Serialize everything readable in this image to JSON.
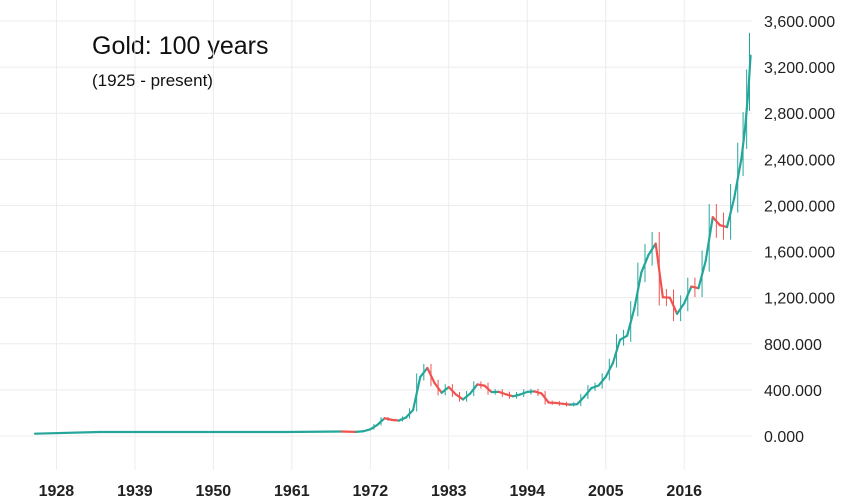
{
  "chart_data": {
    "type": "line",
    "title": "Gold: 100 years",
    "subtitle": "(1925 - present)",
    "xlabel": "",
    "ylabel": "",
    "x_range": [
      1925,
      2025.5
    ],
    "ylim": [
      0,
      3600
    ],
    "y_ticks": [
      0,
      400,
      800,
      1200,
      1600,
      2000,
      2400,
      2800,
      3200,
      3600
    ],
    "y_tick_labels": [
      "0.000",
      "400.000",
      "800.000",
      "1,200.000",
      "1,600.000",
      "2,000.000",
      "2,400.000",
      "2,800.000",
      "3,200.000",
      "3,600.000"
    ],
    "x_ticks": [
      1928,
      1939,
      1950,
      1961,
      1972,
      1983,
      1994,
      2005,
      2016
    ],
    "x_tick_labels": [
      "1928",
      "1939",
      "1950",
      "1961",
      "1972",
      "1983",
      "1994",
      "2005",
      "2016"
    ],
    "grid": true,
    "y_axis_position": "right",
    "colors": {
      "up": "#26a69a",
      "down": "#ef5350",
      "grid": "#ececec",
      "text": "#222222"
    },
    "series": [
      {
        "x": [
          1925,
          1934,
          1940,
          1950,
          1960,
          1968,
          1970,
          1971,
          1972,
          1973,
          1974,
          1975,
          1976,
          1977,
          1978,
          1979,
          1980,
          1981,
          1982,
          1983,
          1984,
          1985,
          1986,
          1987,
          1988,
          1989,
          1990,
          1991,
          1992,
          1993,
          1994,
          1995,
          1996,
          1997,
          1998,
          1999,
          2000,
          2001,
          2002,
          2003,
          2004,
          2005,
          2006,
          2007,
          2008,
          2009,
          2010,
          2011,
          2012,
          2013,
          2014,
          2015,
          2016,
          2017,
          2018,
          2019,
          2020,
          2021,
          2022,
          2023,
          2024,
          2024.5,
          2025,
          2025.3
        ],
        "values": [
          20,
          35,
          35,
          35,
          35,
          39,
          36,
          41,
          58,
          97,
          154,
          140,
          134,
          160,
          226,
          512,
          590,
          460,
          375,
          424,
          360,
          317,
          368,
          447,
          437,
          381,
          383,
          362,
          344,
          360,
          383,
          387,
          369,
          290,
          287,
          279,
          272,
          276,
          342,
          416,
          438,
          513,
          632,
          834,
          870,
          1104,
          1420,
          1572,
          1669,
          1204,
          1199,
          1060,
          1151,
          1296,
          1282,
          1517,
          1898,
          1829,
          1812,
          2062,
          2400,
          2650,
          3000,
          3300
        ]
      }
    ]
  }
}
